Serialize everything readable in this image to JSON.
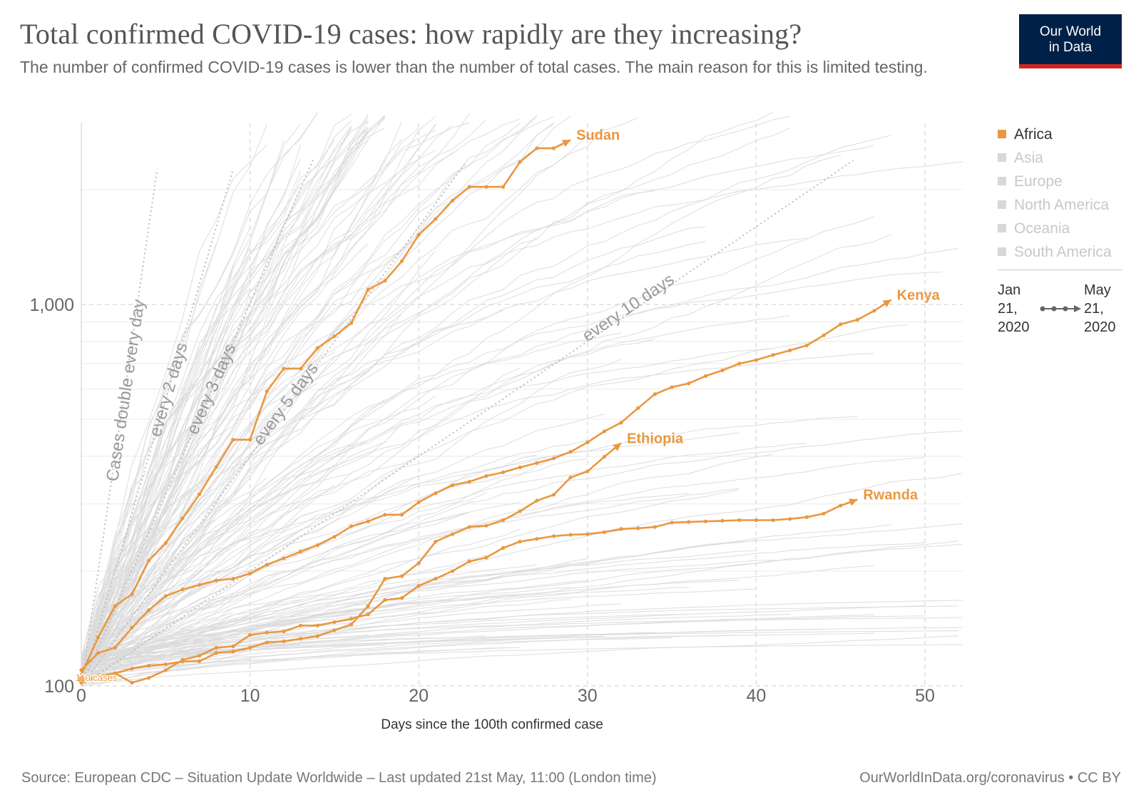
{
  "title": "Total confirmed COVID-19 cases: how rapidly are they increasing?",
  "subtitle": "The number of confirmed COVID-19 cases is lower than the number of total cases. The main reason for this is limited testing.",
  "logo": {
    "line1": "Our World",
    "line2": "in Data",
    "bg": "#002147",
    "accent": "#ce261e"
  },
  "legend": {
    "items": [
      {
        "label": "Africa",
        "active": true,
        "color": "#e99841"
      },
      {
        "label": "Asia",
        "active": false
      },
      {
        "label": "Europe",
        "active": false
      },
      {
        "label": "North America",
        "active": false
      },
      {
        "label": "Oceania",
        "active": false
      },
      {
        "label": "South America",
        "active": false
      }
    ],
    "time_start": "Jan 21, 2020",
    "time_end": "May 21, 2020"
  },
  "footer": {
    "source": "Source: European CDC – Situation Update Worldwide – Last updated 21st May, 11:00 (London time)",
    "license": "OurWorldInData.org/coronavirus • CC BY"
  },
  "chart_data": {
    "type": "line",
    "xlabel": "Days since the 100th confirmed case",
    "ylabel": "",
    "xlim": [
      0,
      53
    ],
    "ylim": [
      100,
      2500
    ],
    "y_scale": "log",
    "x_ticks": [
      0,
      10,
      20,
      30,
      40,
      50
    ],
    "y_ticks": [
      {
        "value": 100,
        "label": "100"
      },
      {
        "value": 1000,
        "label": "1,000"
      }
    ],
    "grid": true,
    "legend_position": "right",
    "highlight_color": "#e99841",
    "background_lines_color": "#d9d9d9",
    "start_annotation": "110 cases",
    "doubling_lines": [
      {
        "label": "Cases double every day",
        "days": 1
      },
      {
        "label": "every 2 days",
        "days": 2
      },
      {
        "label": "every 3 days",
        "days": 3
      },
      {
        "label": "every 5 days",
        "days": 5
      },
      {
        "label": "every 10 days",
        "days": 10
      }
    ],
    "series": [
      {
        "name": "Sudan",
        "x": [
          0,
          1,
          2,
          3,
          4,
          5,
          6,
          7,
          8,
          9,
          10,
          11,
          12,
          13,
          14,
          15,
          16,
          17,
          18,
          19,
          20,
          21,
          22,
          23,
          24,
          25,
          26,
          27,
          28,
          29
        ],
        "y": [
          107,
          134,
          162,
          174,
          213,
          237,
          275,
          318,
          375,
          442,
          442,
          592,
          679,
          679,
          769,
          825,
          894,
          1094,
          1154,
          1299,
          1523,
          1676,
          1871,
          2033,
          2033,
          2033,
          2364,
          2568,
          2568,
          2700
        ]
      },
      {
        "name": "Kenya",
        "x": [
          0,
          1,
          2,
          3,
          4,
          5,
          6,
          7,
          8,
          9,
          10,
          11,
          12,
          13,
          14,
          15,
          16,
          17,
          18,
          19,
          20,
          21,
          22,
          23,
          24,
          25,
          26,
          27,
          28,
          29,
          30,
          31,
          32,
          33,
          34,
          35,
          36,
          37,
          38,
          39,
          40,
          41,
          42,
          43,
          44,
          45,
          46,
          47,
          48
        ],
        "y": [
          110,
          122,
          126,
          142,
          158,
          172,
          179,
          184,
          189,
          191,
          197,
          208,
          216,
          225,
          234,
          246,
          262,
          270,
          281,
          281,
          303,
          320,
          336,
          343,
          355,
          363,
          374,
          384,
          395,
          411,
          435,
          465,
          490,
          535,
          582,
          607,
          621,
          649,
          672,
          700,
          715,
          737,
          758,
          781,
          830,
          887,
          912,
          963,
          1029
        ]
      },
      {
        "name": "Ethiopia",
        "x": [
          0,
          1,
          2,
          3,
          4,
          5,
          6,
          7,
          8,
          9,
          10,
          11,
          12,
          13,
          14,
          15,
          16,
          17,
          18,
          19,
          20,
          21,
          22,
          23,
          24,
          25,
          26,
          27,
          28,
          29,
          30,
          31,
          32
        ],
        "y": [
          104,
          106,
          108,
          111,
          113,
          114,
          116,
          116,
          122,
          123,
          126,
          130,
          131,
          133,
          135,
          140,
          145,
          162,
          191,
          194,
          210,
          239,
          250,
          261,
          263,
          272,
          287,
          306,
          317,
          352,
          365,
          399,
          433
        ]
      },
      {
        "name": "Rwanda",
        "x": [
          0,
          1,
          2,
          3,
          4,
          5,
          6,
          7,
          8,
          9,
          10,
          11,
          12,
          13,
          14,
          15,
          16,
          17,
          18,
          19,
          20,
          21,
          22,
          23,
          24,
          25,
          26,
          27,
          28,
          29,
          30,
          31,
          32,
          33,
          34,
          35,
          36,
          37,
          38,
          39,
          40,
          41,
          42,
          43,
          44,
          45,
          46
        ],
        "y": [
          102,
          105,
          108,
          102,
          105,
          110,
          117,
          120,
          126,
          127,
          136,
          138,
          139,
          144,
          144,
          147,
          150,
          154,
          168,
          170,
          183,
          191,
          200,
          212,
          217,
          230,
          239,
          243,
          247,
          249,
          250,
          253,
          258,
          259,
          261,
          268,
          269,
          270,
          271,
          272,
          272,
          272,
          274,
          277,
          283,
          297,
          308
        ]
      }
    ]
  }
}
